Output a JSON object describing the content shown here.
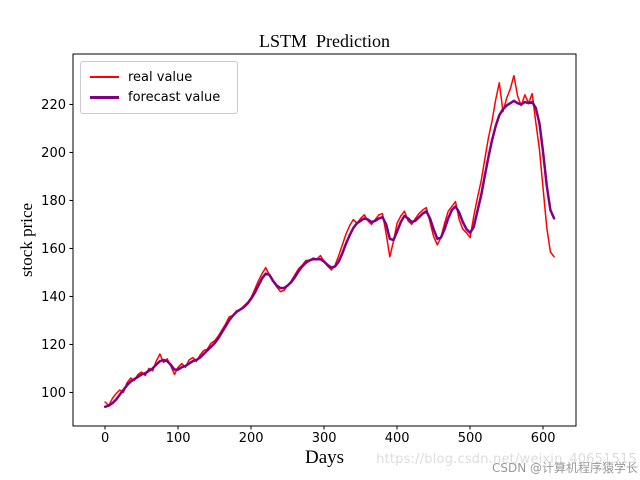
{
  "chart_data": {
    "type": "line",
    "title": "LSTM  Prediction",
    "xlabel": "Days",
    "ylabel": "stock price",
    "xlim": [
      -44,
      645
    ],
    "ylim": [
      86,
      241
    ],
    "xticks": [
      0,
      100,
      200,
      300,
      400,
      500,
      600
    ],
    "yticks": [
      100,
      120,
      140,
      160,
      180,
      200,
      220
    ],
    "grid": false,
    "legend_position": "upper-left",
    "x": [
      0,
      5,
      10,
      15,
      20,
      25,
      30,
      35,
      40,
      45,
      50,
      55,
      60,
      65,
      70,
      75,
      80,
      85,
      90,
      95,
      100,
      105,
      110,
      115,
      120,
      125,
      130,
      135,
      140,
      145,
      150,
      155,
      160,
      165,
      170,
      175,
      180,
      185,
      190,
      195,
      200,
      205,
      210,
      215,
      220,
      225,
      230,
      235,
      240,
      245,
      250,
      255,
      260,
      265,
      270,
      275,
      280,
      285,
      290,
      295,
      300,
      305,
      310,
      315,
      320,
      325,
      330,
      335,
      340,
      345,
      350,
      355,
      360,
      365,
      370,
      375,
      380,
      385,
      390,
      395,
      400,
      405,
      410,
      415,
      420,
      425,
      430,
      435,
      440,
      445,
      450,
      455,
      460,
      465,
      470,
      475,
      480,
      485,
      490,
      495,
      500,
      505,
      510,
      515,
      520,
      525,
      530,
      535,
      540,
      545,
      550,
      555,
      560,
      565,
      570,
      575,
      580,
      585,
      590,
      595,
      600,
      605,
      610,
      615
    ],
    "series": [
      {
        "name": "real value",
        "color": "#ff0000",
        "linewidth": 1.5,
        "values": [
          96,
          94.5,
          97.5,
          99.5,
          101,
          100,
          104,
          106,
          105,
          107.5,
          108.5,
          107,
          110,
          109,
          113,
          116,
          112.5,
          114,
          111,
          107.5,
          110.5,
          112,
          110.5,
          113.5,
          114.5,
          113,
          115.5,
          117.5,
          118,
          120.5,
          121.5,
          123.5,
          126,
          128.5,
          131.5,
          132,
          134,
          134.5,
          136,
          137.5,
          139.5,
          143,
          146.5,
          149.5,
          152,
          149,
          146.5,
          144,
          142,
          142.5,
          144.5,
          146.5,
          149,
          151.5,
          153,
          155,
          155,
          156,
          155.5,
          157,
          154.5,
          152.5,
          151,
          153,
          157,
          161.5,
          166,
          169.5,
          172,
          170.5,
          172.5,
          174,
          171.5,
          170,
          172,
          174,
          174.5,
          166,
          156.5,
          163,
          170.5,
          173.5,
          175.5,
          171.5,
          170,
          172.5,
          174.5,
          176,
          177,
          171,
          165,
          161.5,
          164.5,
          170.5,
          175.5,
          177.5,
          179.5,
          172,
          168,
          166.5,
          164.5,
          173.5,
          181,
          188,
          197,
          206,
          213,
          222,
          229,
          217,
          222.5,
          226.5,
          232,
          223.5,
          219.5,
          224,
          220.5,
          224.5,
          212.5,
          201,
          185,
          168.5,
          158.5,
          156.5
        ]
      },
      {
        "name": "forecast value",
        "color": "#800080",
        "linewidth": 2.5,
        "values": [
          94,
          94.5,
          95.5,
          97,
          99,
          101,
          103,
          104.5,
          105.5,
          106.5,
          107.5,
          108,
          109,
          110,
          111.5,
          113,
          113.5,
          113,
          111.5,
          109.5,
          109.5,
          110.5,
          111,
          112,
          113,
          113.5,
          114.5,
          116,
          117.5,
          119,
          120.5,
          122.5,
          125,
          127.5,
          130,
          132,
          133.5,
          134.5,
          135.5,
          137,
          139,
          141.5,
          144.5,
          147.5,
          149.5,
          149,
          146.5,
          144.5,
          143.5,
          143.5,
          144.5,
          146,
          148,
          150.5,
          152.5,
          154,
          155,
          155.5,
          155.5,
          155.5,
          154.5,
          153,
          152,
          152.5,
          154.5,
          158,
          162,
          165.5,
          168.5,
          170.5,
          171.5,
          172.5,
          172,
          171,
          171.5,
          172.5,
          173,
          170,
          164,
          163.5,
          167,
          171,
          173.5,
          172.5,
          171,
          171.5,
          173,
          174.5,
          175.5,
          172.5,
          168,
          164,
          164.5,
          168,
          172.5,
          176,
          177.5,
          175,
          171,
          168,
          166.5,
          169,
          175.5,
          182,
          190,
          198,
          205,
          211,
          215.5,
          218,
          219.5,
          220.5,
          221.5,
          220.5,
          220,
          221,
          220.5,
          221,
          218.5,
          212,
          200,
          186,
          176,
          172.5
        ]
      }
    ]
  },
  "watermark": {
    "url_text": "https://blog.csdn.net/weixin_40651515",
    "credit_text": "CSDN @计算机程序猿学长",
    "url_color": "#dcdcdc",
    "credit_color": "#999999"
  }
}
